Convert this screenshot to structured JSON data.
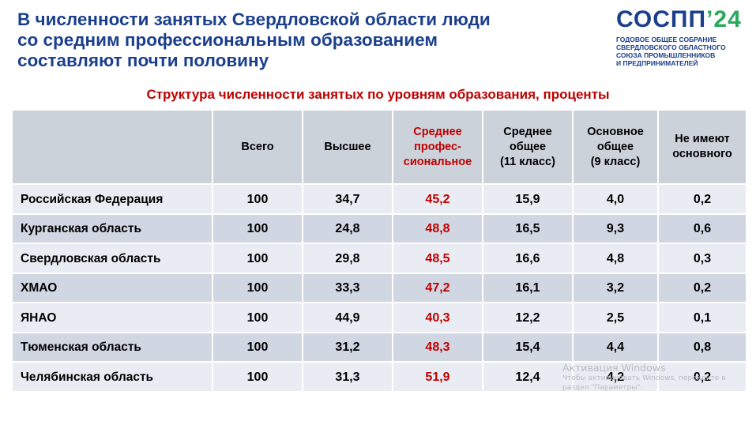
{
  "slide": {
    "title": "В численности занятых Свердловской области люди\nсо средним профессиональным образованием\nсоставляют почти половину",
    "subtitle": "Структура численности занятых по уровням образования, проценты"
  },
  "logo": {
    "word_main": "СОСПП",
    "word_accent": "’24",
    "caption": "ГОДОВОЕ ОБЩЕЕ СОБРАНИЕ\nСВЕРДЛОВСКОГО ОБЛАСТНОГО\nСОЮЗА ПРОМЫШЛЕННИКОВ\nИ ПРЕДПРИНИМАТЕЛЕЙ",
    "colors": {
      "primary": "#1b3f8c",
      "accent": "#2aa95c"
    }
  },
  "table": {
    "headers": [
      "",
      "Всего",
      "Высшее",
      "Среднее\nпрофес-\nсиональное",
      "Среднее\nобщее\n(11 класс)",
      "Основное\nобщее\n(9 класс)",
      "Не имеют\nосновного"
    ],
    "highlight_color": "#c00000",
    "rows": [
      [
        "Российская Федерация",
        "100",
        "34,7",
        "45,2",
        "15,9",
        "4,0",
        "0,2"
      ],
      [
        "Курганская область",
        "100",
        "24,8",
        "48,8",
        "16,5",
        "9,3",
        "0,6"
      ],
      [
        "Свердловская область",
        "100",
        "29,8",
        "48,5",
        "16,6",
        "4,8",
        "0,3"
      ],
      [
        "ХМАО",
        "100",
        "33,3",
        "47,2",
        "16,1",
        "3,2",
        "0,2"
      ],
      [
        "ЯНАО",
        "100",
        "44,9",
        "40,3",
        "12,2",
        "2,5",
        "0,1"
      ],
      [
        "Тюменская область",
        "100",
        "31,2",
        "48,3",
        "15,4",
        "4,4",
        "0,8"
      ],
      [
        "Челябинская область",
        "100",
        "31,3",
        "51,9",
        "12,4",
        "4,2",
        "0,2"
      ]
    ]
  },
  "watermark": {
    "title": "Активация Windows",
    "text": "Чтобы активировать Windows, перейдите в\nраздел \"Параметры\"."
  }
}
